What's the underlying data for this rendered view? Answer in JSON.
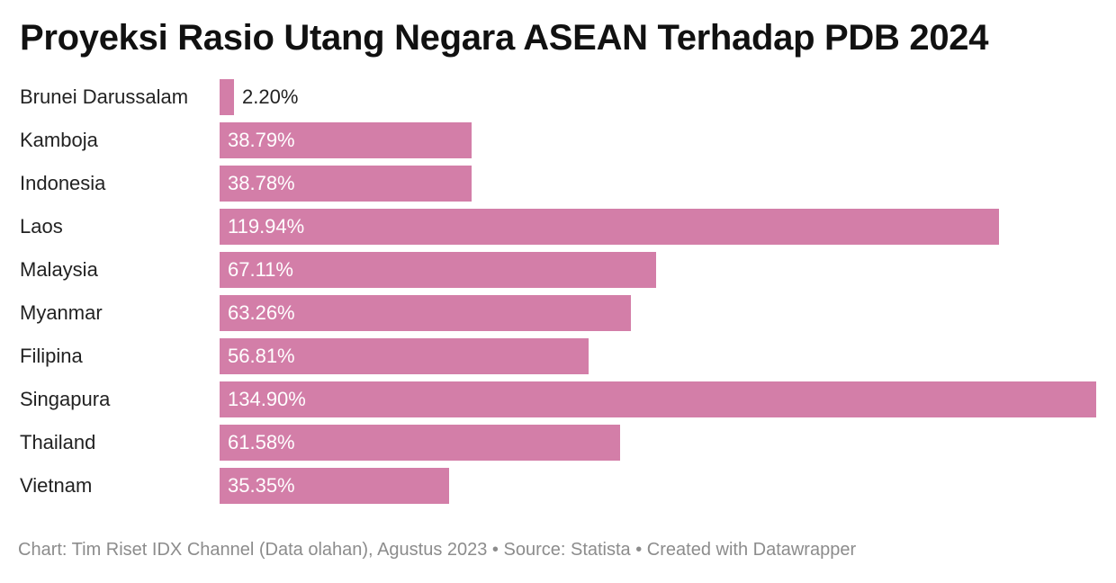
{
  "chart_data": {
    "type": "bar",
    "orientation": "horizontal",
    "title": "Proyeksi Rasio Utang Negara ASEAN Terhadap PDB 2024",
    "categories": [
      "Brunei Darussalam",
      "Kamboja",
      "Indonesia",
      "Laos",
      "Malaysia",
      "Myanmar",
      "Filipina",
      "Singapura",
      "Thailand",
      "Vietnam"
    ],
    "values": [
      2.2,
      38.79,
      38.78,
      119.94,
      67.11,
      63.26,
      56.81,
      134.9,
      61.58,
      35.35
    ],
    "value_labels": [
      "2.20%",
      "38.79%",
      "38.78%",
      "119.94%",
      "67.11%",
      "63.26%",
      "56.81%",
      "134.90%",
      "61.58%",
      "35.35%"
    ],
    "xlim": [
      0,
      134.9
    ],
    "grid": false,
    "bar_color": "#d37ea8"
  },
  "footer": {
    "text": "Chart: Tim Riset IDX Channel (Data olahan), Agustus 2023 • Source: Statista • Created with Datawrapper"
  }
}
